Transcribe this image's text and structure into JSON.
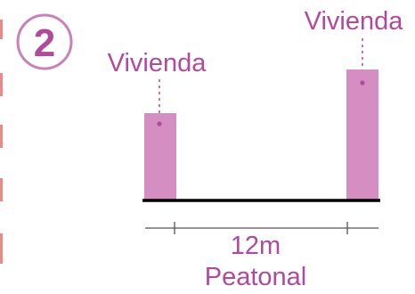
{
  "diagram": {
    "step_number": "2",
    "left_building": {
      "label": "Vivienda"
    },
    "right_building": {
      "label": "Vivienda"
    },
    "dimension": {
      "value": "12m",
      "type": "Peatonal"
    },
    "colors": {
      "accent": "#b04a9c",
      "building_fill": "#d48ec2",
      "edge_dash": "#e98a8a",
      "ground": "#000000",
      "dim_line": "#555555"
    }
  }
}
